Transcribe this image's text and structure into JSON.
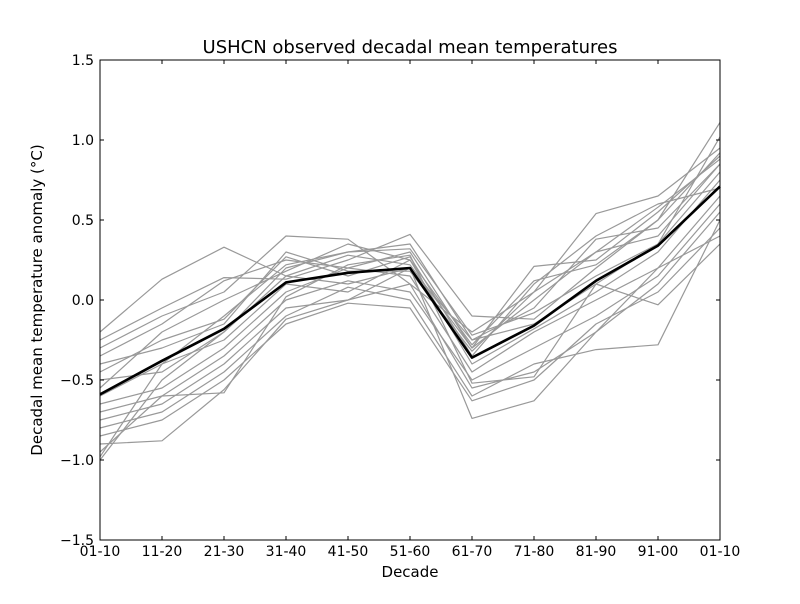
{
  "chart_data": {
    "type": "line",
    "title": "USHCN observed decadal mean temperatures",
    "xlabel": "Decade",
    "ylabel": "Decadal mean temperature anomaly (°C)",
    "categories": [
      "01-10",
      "11-20",
      "21-30",
      "31-40",
      "41-50",
      "51-60",
      "61-70",
      "71-80",
      "81-90",
      "91-00",
      "01-10"
    ],
    "ylim": [
      -1.5,
      1.5
    ],
    "yticks": [
      "−1.5",
      "−1.0",
      "−0.5",
      "0.0",
      "0.5",
      "1.0",
      "1.5"
    ],
    "ytick_values": [
      -1.5,
      -1.0,
      -0.5,
      0.0,
      0.5,
      1.0,
      1.5
    ],
    "grid": false,
    "colors": {
      "members": "#999999",
      "mean": "#000000"
    },
    "series": [
      {
        "values": [
          -0.2,
          0.13,
          0.33,
          0.15,
          0.1,
          0.2,
          -0.25,
          -0.15,
          0.1,
          0.35,
          0.8
        ]
      },
      {
        "values": [
          -0.25,
          -0.05,
          0.14,
          0.13,
          0.25,
          0.41,
          -0.1,
          -0.12,
          0.2,
          0.5,
          1.11
        ]
      },
      {
        "values": [
          -0.3,
          -0.1,
          0.05,
          0.4,
          0.38,
          0.1,
          -0.2,
          0.05,
          0.54,
          0.65,
          0.95
        ]
      },
      {
        "values": [
          -0.35,
          -0.15,
          0.12,
          0.25,
          0.2,
          0.3,
          -0.3,
          0.21,
          0.25,
          0.55,
          0.9
        ]
      },
      {
        "values": [
          -0.45,
          -0.25,
          -0.12,
          0.27,
          0.15,
          0.27,
          -0.35,
          0.1,
          0.4,
          0.6,
          0.7
        ]
      },
      {
        "values": [
          -0.5,
          -0.45,
          -0.2,
          0.2,
          0.3,
          0.35,
          -0.25,
          -0.05,
          0.38,
          0.45,
          0.85
        ]
      },
      {
        "values": [
          -0.6,
          -0.4,
          -0.25,
          0.1,
          0.05,
          0.25,
          -0.4,
          -0.18,
          0.05,
          0.3,
          0.75
        ]
      },
      {
        "values": [
          -0.65,
          -0.55,
          -0.3,
          0.05,
          0.2,
          0.15,
          -0.45,
          -0.2,
          0.0,
          0.2,
          0.65
        ]
      },
      {
        "values": [
          -0.7,
          -0.6,
          -0.35,
          0.0,
          0.12,
          0.05,
          -0.5,
          -0.3,
          -0.1,
          0.15,
          0.6
        ]
      },
      {
        "values": [
          -0.75,
          -0.65,
          -0.4,
          -0.05,
          0.0,
          0.1,
          -0.55,
          -0.45,
          -0.2,
          0.1,
          0.55
        ]
      },
      {
        "values": [
          -0.8,
          -0.7,
          -0.45,
          -0.1,
          0.08,
          0.0,
          -0.6,
          -0.4,
          -0.31,
          -0.28,
          0.5
        ]
      },
      {
        "values": [
          -0.85,
          -0.75,
          -0.5,
          -0.15,
          -0.02,
          -0.05,
          -0.63,
          -0.5,
          -0.15,
          0.05,
          0.45
        ]
      },
      {
        "values": [
          -0.9,
          -0.88,
          -0.56,
          -0.12,
          0.0,
          0.2,
          -0.74,
          -0.63,
          -0.2,
          0.2,
          0.4
        ]
      },
      {
        "values": [
          -0.95,
          -0.6,
          -0.58,
          0.02,
          0.22,
          0.28,
          -0.52,
          -0.48,
          0.1,
          -0.03,
          0.35
        ]
      },
      {
        "values": [
          -1.0,
          -0.5,
          -0.2,
          0.15,
          0.28,
          0.22,
          -0.3,
          0.0,
          0.3,
          0.4,
          0.85
        ]
      },
      {
        "values": [
          -0.98,
          -0.4,
          -0.1,
          0.22,
          0.3,
          0.32,
          -0.22,
          -0.08,
          0.15,
          0.35,
          1.02
        ]
      },
      {
        "values": [
          -0.55,
          -0.2,
          0.0,
          0.18,
          0.35,
          0.25,
          -0.28,
          0.12,
          0.22,
          0.5,
          0.92
        ]
      },
      {
        "values": [
          -0.4,
          -0.3,
          -0.15,
          0.3,
          0.18,
          0.18,
          -0.32,
          0.05,
          0.3,
          0.58,
          0.88
        ]
      }
    ],
    "mean_series": {
      "values": [
        -0.59,
        -0.38,
        -0.18,
        0.11,
        0.17,
        0.2,
        -0.36,
        -0.16,
        0.12,
        0.34,
        0.71
      ]
    }
  }
}
